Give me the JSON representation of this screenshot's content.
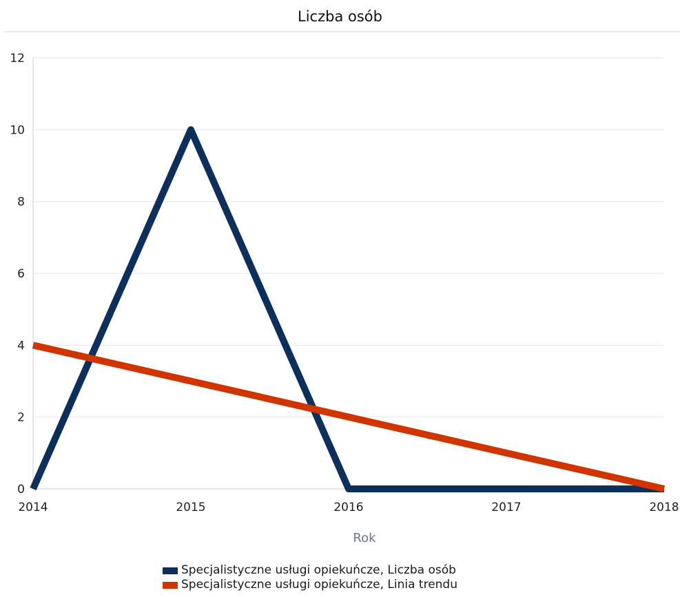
{
  "chart_data": {
    "type": "line",
    "title": "Liczba osób",
    "xlabel": "Rok",
    "ylabel": "",
    "x": [
      2014,
      2015,
      2016,
      2017,
      2018
    ],
    "ylim": [
      0,
      12
    ],
    "yticks": [
      0,
      2,
      4,
      6,
      8,
      10,
      12
    ],
    "grid": true,
    "legend_position": "bottom",
    "series": [
      {
        "name": "Specjalistyczne usługi opiekuńcze, Liczba osób",
        "color": "#0c2f5c",
        "values": [
          0,
          10,
          0,
          0,
          0
        ]
      },
      {
        "name": "Specjalistyczne usługi opiekuńcze, Linia trendu",
        "color": "#d03500",
        "values": [
          4,
          3,
          2,
          1,
          0
        ]
      }
    ]
  }
}
